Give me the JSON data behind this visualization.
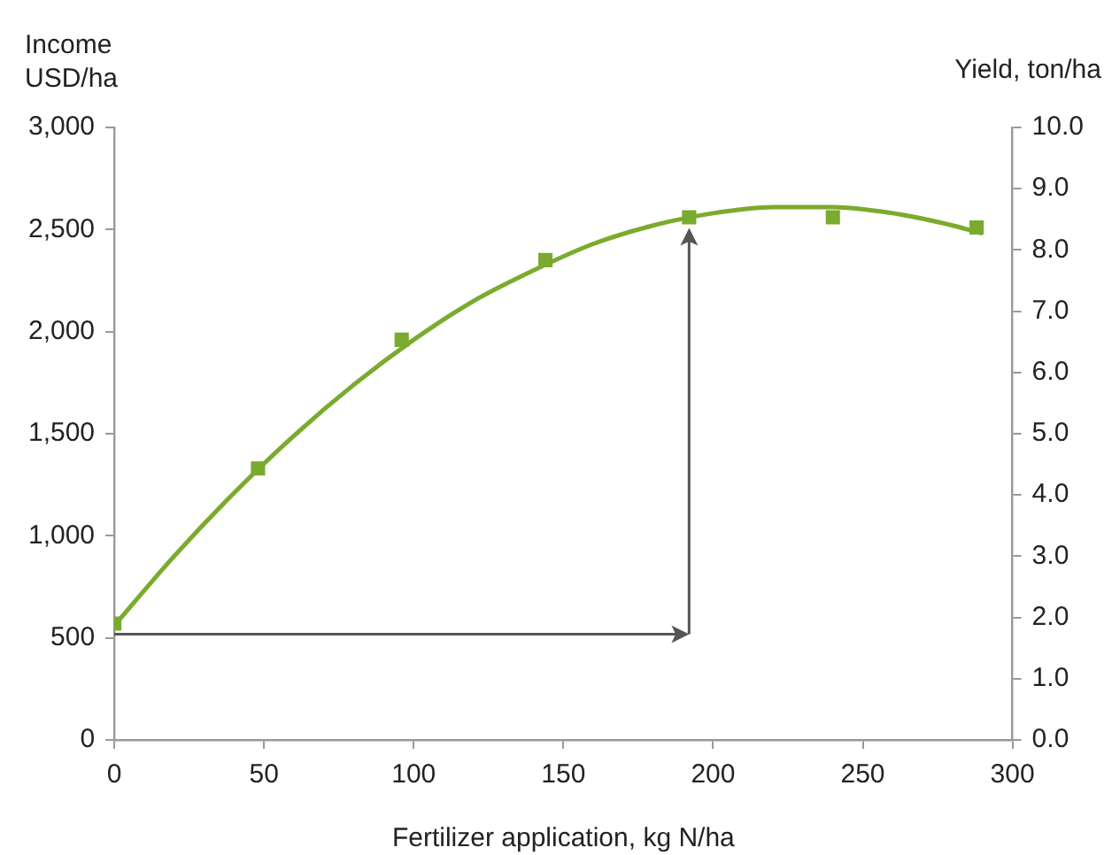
{
  "chart_data": {
    "type": "scatter",
    "xlabel": "Fertilizer application, kg N/ha",
    "ylabel": "Income\nUSD/ha",
    "y2label": "Yield, ton/ha",
    "x": [
      0,
      48,
      96,
      144,
      192,
      240,
      288
    ],
    "series": [
      {
        "type": "scatter",
        "color": "#7aab2e",
        "marker": "square",
        "values": [
          570,
          1330,
          1960,
          2350,
          2560,
          2560,
          2510
        ]
      },
      {
        "type": "line",
        "color": "#7aab2e",
        "marker": "none",
        "x": [
          0,
          20,
          40,
          60,
          80,
          100,
          120,
          140,
          160,
          180,
          200,
          220,
          240,
          260,
          280,
          290
        ],
        "values": [
          560,
          900,
          1210,
          1490,
          1740,
          1960,
          2150,
          2300,
          2430,
          2520,
          2580,
          2610,
          2610,
          2580,
          2520,
          2480
        ]
      }
    ],
    "xlim": [
      0,
      300
    ],
    "xticks": [
      0,
      50,
      100,
      150,
      200,
      250,
      300
    ],
    "ylim": [
      0,
      3000
    ],
    "yticks": [
      0,
      {
        "value": 500,
        "label": "500"
      },
      {
        "value": 1000,
        "label": "1,000"
      },
      {
        "value": 1500,
        "label": "1,500"
      },
      {
        "value": 2000,
        "label": "2,000"
      },
      {
        "value": 2500,
        "label": "2,500"
      },
      {
        "value": 3000,
        "label": "3,000"
      }
    ],
    "y2lim": [
      0,
      10
    ],
    "y2ticks": [
      {
        "value": 0,
        "label": "0.0"
      },
      {
        "value": 1,
        "label": "1.0"
      },
      {
        "value": 2,
        "label": "2.0"
      },
      {
        "value": 3,
        "label": "3.0"
      },
      {
        "value": 4,
        "label": "4.0"
      },
      {
        "value": 5,
        "label": "5.0"
      },
      {
        "value": 6,
        "label": "6.0"
      },
      {
        "value": 7,
        "label": "7.0"
      },
      {
        "value": 8,
        "label": "8.0"
      },
      {
        "value": 9,
        "label": "9.0"
      },
      {
        "value": 10,
        "label": "10.0"
      }
    ],
    "grid": false,
    "legend": false
  }
}
